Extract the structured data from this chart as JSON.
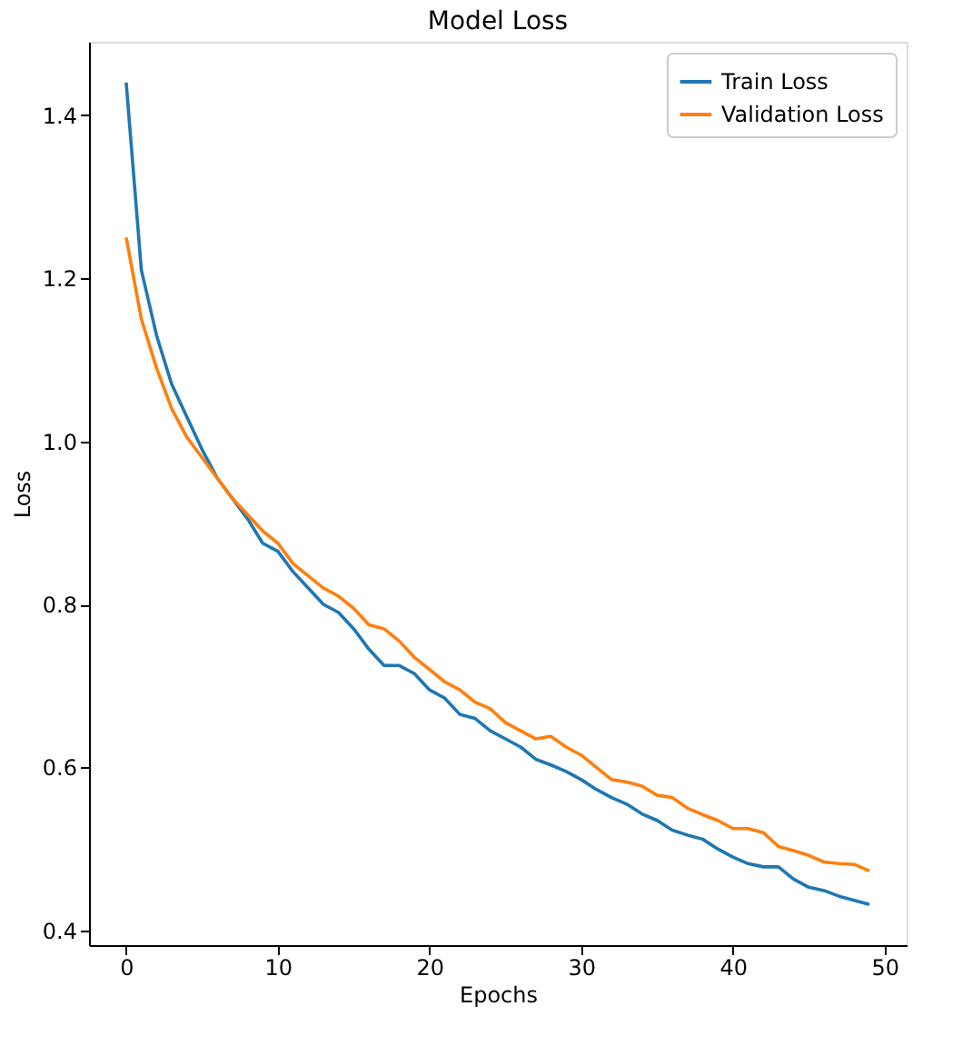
{
  "chart_data": {
    "type": "line",
    "title": "Model Loss",
    "xlabel": "Epochs",
    "ylabel": "Loss",
    "x": [
      0,
      1,
      2,
      3,
      4,
      5,
      6,
      7,
      8,
      9,
      10,
      11,
      12,
      13,
      14,
      15,
      16,
      17,
      18,
      19,
      20,
      21,
      22,
      23,
      24,
      25,
      26,
      27,
      28,
      29,
      30,
      31,
      32,
      33,
      34,
      35,
      36,
      37,
      38,
      39,
      40,
      41,
      42,
      43,
      44,
      45,
      46,
      47,
      48,
      49
    ],
    "series": [
      {
        "name": "Train Loss",
        "color": "#1f77b4",
        "values": [
          1.44,
          1.21,
          1.13,
          1.07,
          1.03,
          0.99,
          0.955,
          0.93,
          0.905,
          0.875,
          0.865,
          0.84,
          0.82,
          0.8,
          0.79,
          0.77,
          0.745,
          0.725,
          0.725,
          0.715,
          0.695,
          0.685,
          0.665,
          0.66,
          0.645,
          0.635,
          0.625,
          0.61,
          0.603,
          0.595,
          0.585,
          0.573,
          0.563,
          0.555,
          0.543,
          0.535,
          0.523,
          0.517,
          0.512,
          0.5,
          0.49,
          0.482,
          0.478,
          0.478,
          0.463,
          0.453,
          0.449,
          0.442,
          0.437,
          0.432
        ]
      },
      {
        "name": "Validation Loss",
        "color": "#ff7f0e",
        "values": [
          1.25,
          1.15,
          1.09,
          1.04,
          1.005,
          0.98,
          0.955,
          0.93,
          0.91,
          0.89,
          0.875,
          0.85,
          0.835,
          0.82,
          0.81,
          0.795,
          0.775,
          0.77,
          0.755,
          0.735,
          0.72,
          0.705,
          0.695,
          0.68,
          0.672,
          0.655,
          0.645,
          0.635,
          0.638,
          0.625,
          0.615,
          0.6,
          0.585,
          0.582,
          0.577,
          0.566,
          0.563,
          0.55,
          0.542,
          0.535,
          0.525,
          0.525,
          0.52,
          0.503,
          0.498,
          0.492,
          0.484,
          0.482,
          0.481,
          0.473
        ]
      }
    ],
    "xlim": [
      -2.45,
      51.45
    ],
    "xticks": [
      0,
      10,
      20,
      30,
      40,
      50
    ],
    "ylim": [
      0.382,
      1.49
    ],
    "yticks": [
      {
        "value": 0.4,
        "label": "0.4"
      },
      {
        "value": 0.6,
        "label": "0.6"
      },
      {
        "value": 0.8,
        "label": "0.8"
      },
      {
        "value": 1.0,
        "label": "1.0"
      },
      {
        "value": 1.2,
        "label": "1.2"
      },
      {
        "value": 1.4,
        "label": "1.4"
      }
    ],
    "grid": false,
    "legend": "top right",
    "line_style": "solid",
    "marker": "none"
  }
}
